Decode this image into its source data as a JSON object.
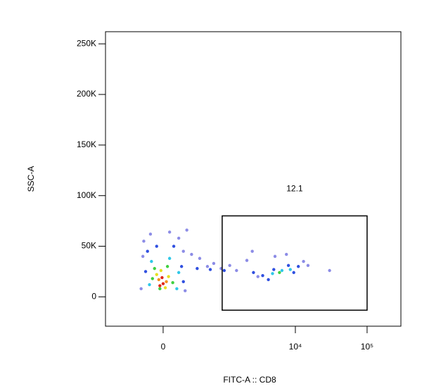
{
  "chart_data": {
    "type": "scatter",
    "xlabel": "FITC-A :: CD8",
    "ylabel": "SSC-A",
    "xscale": "asinh",
    "xlim": [
      -890,
      296000
    ],
    "ylim": [
      -29000,
      262000
    ],
    "xticks": [
      0,
      {
        "value": 10000,
        "label": "10⁴"
      },
      {
        "value": 100000,
        "label": "10⁵"
      }
    ],
    "yticks": [
      0,
      {
        "value": 50000,
        "label": "50K"
      },
      {
        "value": 100000,
        "label": "100K"
      },
      {
        "value": 150000,
        "label": "150K"
      },
      {
        "value": 200000,
        "label": "200K"
      },
      {
        "value": 250000,
        "label": "250K"
      }
    ],
    "gate": {
      "value": 12.1,
      "x": [
        933,
        100000
      ],
      "y": [
        -13200,
        80000
      ],
      "color": "#000000"
    },
    "series": [
      {
        "color": "#8c8ce6",
        "x": [
          -190,
          -120,
          60,
          150,
          240,
          -200,
          200,
          300,
          420,
          560,
          700,
          900,
          1200,
          1500,
          2100,
          3000,
          5200,
          7500,
          13000,
          15000,
          30000,
          -220,
          220,
          2500
        ],
        "y": [
          55000,
          62000,
          64000,
          58000,
          66000,
          40000,
          45000,
          42000,
          38000,
          30000,
          33000,
          28000,
          31000,
          26000,
          36000,
          20000,
          40000,
          42000,
          35000,
          31000,
          26000,
          8000,
          6000,
          45000
        ]
      },
      {
        "color": "#3050e0",
        "x": [
          -150,
          -60,
          100,
          -170,
          180,
          200,
          380,
          620,
          1000,
          2600,
          3500,
          5000,
          8000,
          11000,
          9500,
          4200
        ],
        "y": [
          45000,
          50000,
          50000,
          25000,
          30000,
          15000,
          28000,
          27000,
          26000,
          24000,
          21000,
          27000,
          31000,
          30000,
          24000,
          17000
        ]
      },
      {
        "color": "#30c8e8",
        "x": [
          -110,
          60,
          -130,
          130,
          150,
          4800,
          6500,
          8500
        ],
        "y": [
          35000,
          38000,
          12000,
          8000,
          24000,
          23000,
          26000,
          27000
        ]
      },
      {
        "color": "#40d040",
        "x": [
          -80,
          40,
          -100,
          90,
          -30,
          6000
        ],
        "y": [
          28000,
          30000,
          18000,
          14000,
          8000,
          24000
        ]
      },
      {
        "color": "#e8e020",
        "x": [
          -60,
          50,
          -20,
          20
        ],
        "y": [
          22000,
          20000,
          26000,
          9000
        ]
      },
      {
        "color": "#f59020",
        "x": [
          -40,
          30
        ],
        "y": [
          17000,
          15000
        ]
      },
      {
        "color": "#e02818",
        "x": [
          -10,
          0,
          -30
        ],
        "y": [
          19000,
          13000,
          11000
        ]
      }
    ]
  }
}
